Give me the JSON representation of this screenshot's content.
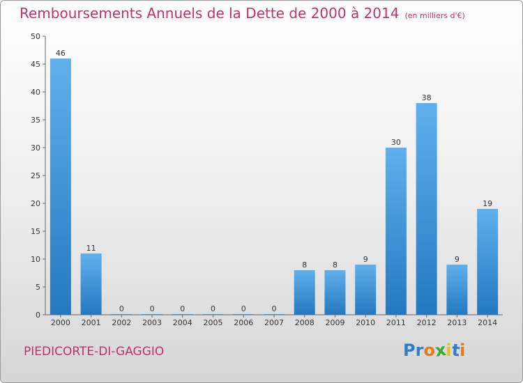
{
  "header": {
    "title": "Remboursements Annuels de la Dette de 2000 à 2014",
    "unit": "(en milliers d'€)"
  },
  "footer": {
    "commune": "PIEDICORTE-DI-GAGGIO",
    "brand": "Proxiti"
  },
  "chart_data": {
    "type": "bar",
    "title": "Remboursements Annuels de la Dette de 2000 à 2014",
    "categories": [
      "2000",
      "2001",
      "2002",
      "2003",
      "2004",
      "2005",
      "2006",
      "2007",
      "2008",
      "2009",
      "2010",
      "2011",
      "2012",
      "2013",
      "2014"
    ],
    "values": [
      46,
      11,
      0,
      0,
      0,
      0,
      0,
      0,
      8,
      8,
      9,
      30,
      38,
      9,
      19
    ],
    "ylim": [
      0,
      50
    ],
    "yticks": [
      0,
      5,
      10,
      15,
      20,
      25,
      30,
      35,
      40,
      45,
      50
    ],
    "grid": false,
    "bar_color": "#3a8fd6"
  }
}
